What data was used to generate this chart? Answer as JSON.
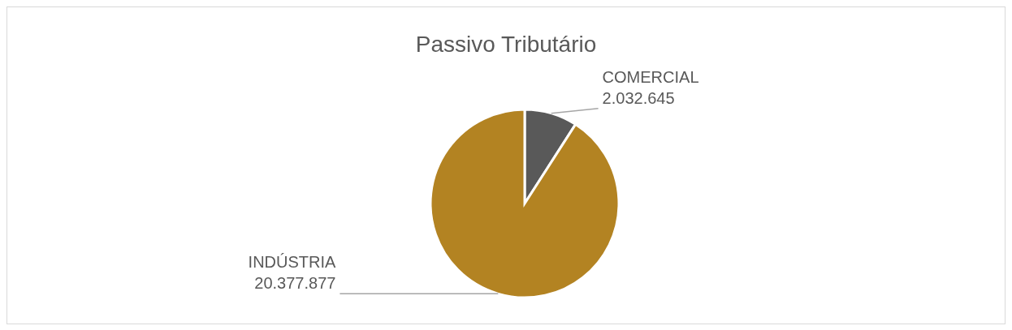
{
  "chart_data": {
    "type": "pie",
    "title": "Passivo Tributário",
    "categories": [
      "COMERCIAL",
      "INDÚSTRIA"
    ],
    "values": [
      2032645,
      20377877
    ],
    "value_labels": [
      "2.032.645",
      "20.377.877"
    ],
    "colors": [
      "#595959",
      "#b38322"
    ]
  }
}
